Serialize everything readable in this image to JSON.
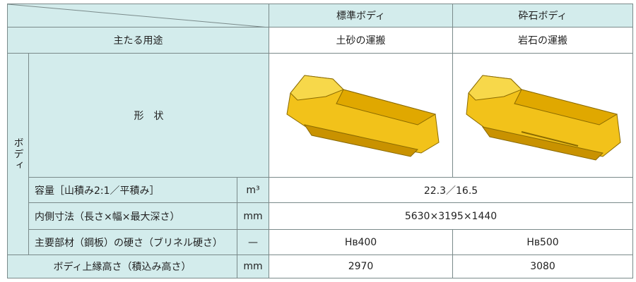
{
  "header": {
    "columns": [
      "標準ボディ",
      "砕石ボディ"
    ]
  },
  "usage": {
    "label": "主たる用途",
    "values": [
      "土砂の運搬",
      "岩石の運搬"
    ]
  },
  "body": {
    "group_label": "ボディ",
    "shape_label": "形　状",
    "capacity": {
      "label": "容量［山積み2:1／平積み］",
      "unit": "m³",
      "value": "22.3／16.5"
    },
    "inner_dimensions": {
      "label": "内側寸法（長さ×幅×最大深さ）",
      "unit": "mm",
      "value": "5630×3195×1440"
    },
    "hardness": {
      "label": "主要部材（鋼板）の硬さ（ブリネル硬さ）",
      "unit": "—",
      "values": [
        "Hʙ400",
        "Hʙ500"
      ]
    }
  },
  "top_edge_height": {
    "label": "ボディ上縁高さ（積込み高さ）",
    "unit": "mm",
    "values": [
      "2970",
      "3080"
    ]
  }
}
